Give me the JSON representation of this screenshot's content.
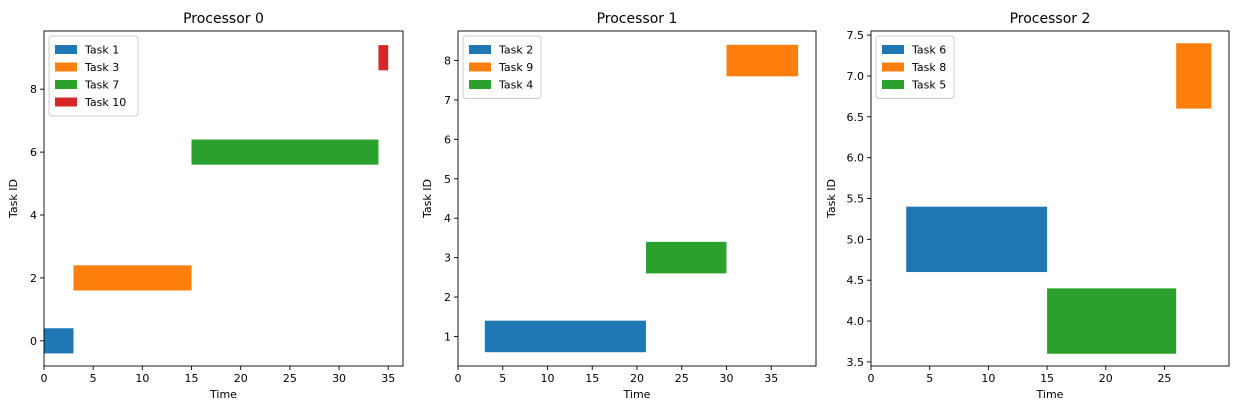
{
  "chart_data": [
    {
      "type": "bar",
      "orientation": "horizontal",
      "title": "Processor 0",
      "xlabel": "Time",
      "ylabel": "Task ID",
      "xlim": [
        0,
        36.5
      ],
      "ylim": [
        -0.8,
        9.85
      ],
      "xticks": [
        0,
        5,
        10,
        15,
        20,
        25,
        30,
        35
      ],
      "yticks": [
        0,
        2,
        4,
        6,
        8
      ],
      "legend_position": "top-left",
      "tasks": [
        {
          "name": "Task 1",
          "id": 0,
          "start": 0,
          "end": 3,
          "color": "#1f77b4"
        },
        {
          "name": "Task 3",
          "id": 2,
          "start": 3,
          "end": 15,
          "color": "#ff7f0e"
        },
        {
          "name": "Task 7",
          "id": 6,
          "start": 15,
          "end": 34,
          "color": "#2ca02c"
        },
        {
          "name": "Task 10",
          "id": 9,
          "start": 34,
          "end": 35,
          "color": "#d62728"
        }
      ]
    },
    {
      "type": "bar",
      "orientation": "horizontal",
      "title": "Processor 1",
      "xlabel": "Time",
      "ylabel": "Task ID",
      "xlim": [
        0,
        40
      ],
      "ylim": [
        0.25,
        8.75
      ],
      "xticks": [
        0,
        5,
        10,
        15,
        20,
        25,
        30,
        35
      ],
      "yticks": [
        1,
        2,
        3,
        4,
        5,
        6,
        7,
        8
      ],
      "legend_position": "top-left",
      "tasks": [
        {
          "name": "Task 2",
          "id": 1,
          "start": 3,
          "end": 21,
          "color": "#1f77b4"
        },
        {
          "name": "Task 9",
          "id": 8,
          "start": 30,
          "end": 38,
          "color": "#ff7f0e"
        },
        {
          "name": "Task 4",
          "id": 3,
          "start": 21,
          "end": 30,
          "color": "#2ca02c"
        }
      ]
    },
    {
      "type": "bar",
      "orientation": "horizontal",
      "title": "Processor 2",
      "xlabel": "Time",
      "ylabel": "Task ID",
      "xlim": [
        0,
        30.5
      ],
      "ylim": [
        3.45,
        7.55
      ],
      "xticks": [
        0,
        5,
        10,
        15,
        20,
        25
      ],
      "yticks": [
        3.5,
        4.0,
        4.5,
        5.0,
        5.5,
        6.0,
        6.5,
        7.0,
        7.5
      ],
      "ytick_labels": [
        "3.5",
        "4.0",
        "4.5",
        "5.0",
        "5.5",
        "6.0",
        "6.5",
        "7.0",
        "7.5"
      ],
      "legend_position": "top-left",
      "tasks": [
        {
          "name": "Task 6",
          "id": 5,
          "start": 3,
          "end": 15,
          "color": "#1f77b4"
        },
        {
          "name": "Task 8",
          "id": 7,
          "start": 26,
          "end": 29,
          "color": "#ff7f0e"
        },
        {
          "name": "Task 5",
          "id": 4,
          "start": 15,
          "end": 26,
          "color": "#2ca02c"
        }
      ]
    }
  ]
}
